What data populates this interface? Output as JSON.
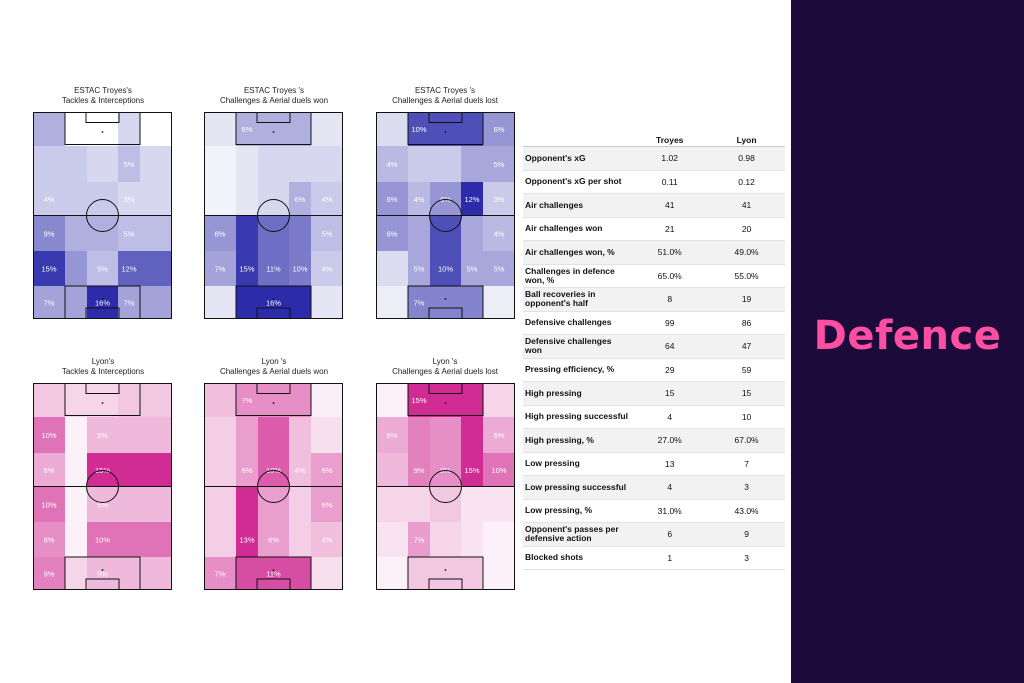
{
  "sidebar": {
    "title": "Defence",
    "background": "#1c0a3b",
    "accent": "#ff4fa3"
  },
  "chart_data": [
    {
      "type": "heatmap",
      "team": "Troyes",
      "title_line1": "ESTAC Troyes's",
      "title_line2": "Tackles & Interceptions",
      "color": "#1a1aa3",
      "rows": [
        [
          "",
          "",
          "",
          "",
          ""
        ],
        [
          "",
          "",
          "",
          "5%",
          ""
        ],
        [
          "4%",
          "",
          "",
          "3%",
          ""
        ],
        [
          "9%",
          "",
          "",
          "5%",
          ""
        ],
        [
          "15%",
          "",
          "5%",
          "12%",
          ""
        ],
        [
          "7%",
          "",
          "16%",
          "7%",
          ""
        ]
      ],
      "values": [
        [
          6,
          0,
          0,
          3,
          0
        ],
        [
          4,
          4,
          3,
          5,
          3
        ],
        [
          4,
          4,
          4,
          3,
          3
        ],
        [
          9,
          6,
          6,
          5,
          5
        ],
        [
          15,
          8,
          5,
          12,
          12
        ],
        [
          7,
          7,
          16,
          7,
          7
        ]
      ]
    },
    {
      "type": "heatmap",
      "team": "Troyes",
      "title_line1": "ESTAC Troyes 's",
      "title_line2": "Challenges & Aerial duels won",
      "color": "#1a1aa3",
      "rows": [
        [
          "",
          "6%",
          "",
          "",
          ""
        ],
        [
          "",
          "",
          "",
          "",
          ""
        ],
        [
          "",
          "",
          "",
          "6%",
          "4%"
        ],
        [
          "8%",
          "",
          "",
          "",
          "5%"
        ],
        [
          "7%",
          "15%",
          "11%",
          "10%",
          "4%"
        ],
        [
          "",
          "",
          "16%",
          "",
          ""
        ]
      ],
      "values": [
        [
          2,
          6,
          6,
          6,
          2
        ],
        [
          1,
          2,
          3,
          3,
          3
        ],
        [
          1,
          2,
          3,
          6,
          4
        ],
        [
          8,
          15,
          11,
          10,
          5
        ],
        [
          7,
          15,
          11,
          10,
          4
        ],
        [
          2,
          16,
          16,
          16,
          2
        ]
      ]
    },
    {
      "type": "heatmap",
      "team": "Troyes",
      "title_line1": "ESTAC Troyes 's",
      "title_line2": "Challenges & Aerial duels lost",
      "color": "#1a1aa3",
      "rows": [
        [
          "",
          "10%",
          "",
          "",
          "6%"
        ],
        [
          "4%",
          "",
          "",
          "",
          "5%"
        ],
        [
          "6%",
          "4%",
          "6%",
          "12%",
          "3%"
        ],
        [
          "6%",
          "",
          "",
          "",
          "4%"
        ],
        [
          "",
          "5%",
          "10%",
          "5%",
          "5%"
        ],
        [
          "",
          "7%",
          "",
          "",
          ""
        ]
      ],
      "values": [
        [
          2,
          10,
          10,
          10,
          6
        ],
        [
          4,
          3,
          3,
          5,
          5
        ],
        [
          6,
          4,
          6,
          12,
          3
        ],
        [
          6,
          5,
          10,
          5,
          4
        ],
        [
          2,
          5,
          10,
          5,
          5
        ],
        [
          1,
          7,
          7,
          7,
          1
        ]
      ]
    },
    {
      "type": "heatmap",
      "team": "Lyon",
      "title_line1": "Lyon's",
      "title_line2": "Tackles & Interceptions",
      "color": "#cc1a8a",
      "rows": [
        [
          "",
          "",
          "",
          "",
          ""
        ],
        [
          "10%",
          "",
          "5%",
          "",
          ""
        ],
        [
          "6%",
          "",
          "15%",
          "",
          ""
        ],
        [
          "10%",
          "",
          "5%",
          "",
          ""
        ],
        [
          "8%",
          "",
          "10%",
          "",
          ""
        ],
        [
          "9%",
          "",
          "5%",
          "",
          ""
        ]
      ],
      "values": [
        [
          4,
          3,
          3,
          4,
          4
        ],
        [
          10,
          1,
          5,
          5,
          5
        ],
        [
          6,
          1,
          15,
          15,
          15
        ],
        [
          10,
          1,
          5,
          5,
          5
        ],
        [
          8,
          1,
          10,
          10,
          10
        ],
        [
          9,
          3,
          5,
          5,
          5
        ]
      ]
    },
    {
      "type": "heatmap",
      "team": "Lyon",
      "title_line1": "Lyon 's",
      "title_line2": "Challenges & Aerial duels won",
      "color": "#cc1a8a",
      "rows": [
        [
          "",
          "7%",
          "",
          "",
          ""
        ],
        [
          "",
          "",
          "",
          "",
          ""
        ],
        [
          "",
          "6%",
          "10%",
          "4%",
          "6%"
        ],
        [
          "",
          "",
          "",
          "",
          "6%"
        ],
        [
          "",
          "13%",
          "6%",
          "",
          "4%"
        ],
        [
          "7%",
          "",
          "11%",
          "",
          ""
        ]
      ],
      "values": [
        [
          4,
          7,
          7,
          7,
          1
        ],
        [
          3,
          6,
          10,
          4,
          2
        ],
        [
          3,
          6,
          10,
          4,
          6
        ],
        [
          3,
          13,
          6,
          3,
          6
        ],
        [
          3,
          13,
          6,
          3,
          4
        ],
        [
          7,
          11,
          11,
          11,
          2
        ]
      ]
    },
    {
      "type": "heatmap",
      "team": "Lyon",
      "title_line1": "Lyon 's",
      "title_line2": "Challenges & Aerial duels lost",
      "color": "#cc1a8a",
      "rows": [
        [
          "",
          "15%",
          "",
          "",
          ""
        ],
        [
          "6%",
          "",
          "",
          "",
          "6%"
        ],
        [
          "",
          "9%",
          "8%",
          "15%",
          "10%"
        ],
        [
          "",
          "",
          "",
          "",
          ""
        ],
        [
          "",
          "7%",
          "",
          "",
          ""
        ],
        [
          "",
          "",
          "",
          "",
          ""
        ]
      ],
      "values": [
        [
          1,
          15,
          15,
          15,
          3
        ],
        [
          6,
          9,
          8,
          15,
          6
        ],
        [
          5,
          9,
          8,
          15,
          10
        ],
        [
          3,
          3,
          4,
          2,
          2
        ],
        [
          2,
          7,
          3,
          2,
          1
        ],
        [
          1,
          4,
          4,
          4,
          1
        ]
      ]
    }
  ],
  "stats": {
    "columns": [
      "",
      "Troyes",
      "Lyon"
    ],
    "rows": [
      {
        "label": "Opponent's xG",
        "troyes": "1.02",
        "lyon": "0.98"
      },
      {
        "label": "Opponent's xG per shot",
        "troyes": "0.11",
        "lyon": "0.12"
      },
      {
        "label": "Air challenges",
        "troyes": "41",
        "lyon": "41"
      },
      {
        "label": "Air challenges won",
        "troyes": "21",
        "lyon": "20"
      },
      {
        "label": "Air challenges won, %",
        "troyes": "51.0%",
        "lyon": "49.0%"
      },
      {
        "label": "Challenges in defence won, %",
        "troyes": "65.0%",
        "lyon": "55.0%"
      },
      {
        "label": "Ball recoveries in opponent's half",
        "troyes": "8",
        "lyon": "19"
      },
      {
        "label": "Defensive challenges",
        "troyes": "99",
        "lyon": "86"
      },
      {
        "label": "Defensive challenges won",
        "troyes": "64",
        "lyon": "47"
      },
      {
        "label": "Pressing efficiency, %",
        "troyes": "29",
        "lyon": "59"
      },
      {
        "label": "High pressing",
        "troyes": "15",
        "lyon": "15"
      },
      {
        "label": "High pressing successful",
        "troyes": "4",
        "lyon": "10"
      },
      {
        "label": "High pressing, %",
        "troyes": "27.0%",
        "lyon": "67.0%"
      },
      {
        "label": "Low pressing",
        "troyes": "13",
        "lyon": "7"
      },
      {
        "label": "Low pressing successful",
        "troyes": "4",
        "lyon": "3"
      },
      {
        "label": "Low pressing, %",
        "troyes": "31.0%",
        "lyon": "43.0%"
      },
      {
        "label": "Opponent's passes per defensive action",
        "troyes": "6",
        "lyon": "9"
      },
      {
        "label": "Blocked shots",
        "troyes": "1",
        "lyon": "3"
      }
    ]
  }
}
